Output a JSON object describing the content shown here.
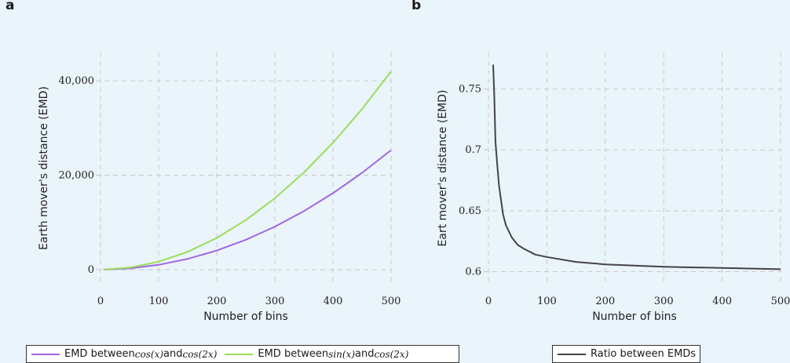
{
  "panels": {
    "a_letter": "a",
    "b_letter": "b"
  },
  "colors": {
    "purple": "#a066e0",
    "green": "#9bdd58",
    "dark": "#444444",
    "grid": "#c8c8c8"
  },
  "chart_data": [
    {
      "type": "line",
      "panel": "a",
      "xlabel": "Number of bins",
      "ylabel": "Earth mover's distance (EMD)",
      "xlim": [
        0,
        500
      ],
      "ylim": [
        -3000,
        46000
      ],
      "xticks": [
        0,
        100,
        200,
        300,
        400,
        500
      ],
      "xtick_labels": [
        "0",
        "100",
        "200",
        "300",
        "400",
        "500"
      ],
      "yticks": [
        0,
        20000,
        40000
      ],
      "ytick_labels": [
        "0",
        "20,000",
        "40,000"
      ],
      "grid": true,
      "legend_position": "bottom",
      "series": [
        {
          "legend_prefix": "EMD between ",
          "legend_m1": "cos(x)",
          "legend_mid": " and ",
          "legend_m2": "cos(2x)",
          "color": "#a066e0",
          "x": [
            5,
            50,
            100,
            150,
            200,
            250,
            300,
            350,
            400,
            450,
            500
          ],
          "values": [
            3,
            253,
            1013,
            2278,
            4050,
            6328,
            9113,
            12403,
            16200,
            20503,
            25313
          ]
        },
        {
          "legend_prefix": "EMD between ",
          "legend_m1": "sin(x)",
          "legend_mid": " and ",
          "legend_m2": "cos(2x)",
          "color": "#9bdd58",
          "x": [
            5,
            50,
            100,
            150,
            200,
            250,
            300,
            350,
            400,
            450,
            500
          ],
          "values": [
            4,
            420,
            1680,
            3780,
            6720,
            10500,
            15120,
            20580,
            26880,
            34020,
            42000
          ]
        }
      ]
    },
    {
      "type": "line",
      "panel": "b",
      "xlabel": "Number of bins",
      "ylabel": "Eart mover's distance (EMD)",
      "xlim": [
        0,
        500
      ],
      "ylim": [
        0.59,
        0.78
      ],
      "xticks": [
        0,
        100,
        200,
        300,
        400,
        500
      ],
      "xtick_labels": [
        "0",
        "100",
        "200",
        "300",
        "400",
        "500"
      ],
      "yticks": [
        0.6,
        0.65,
        0.7,
        0.75
      ],
      "ytick_labels": [
        "0.6",
        "0.65",
        "0.7",
        "0.75"
      ],
      "grid": true,
      "legend_position": "bottom",
      "series": [
        {
          "name": "Ratio between EMDs",
          "color": "#444444",
          "x": [
            8,
            10,
            12,
            15,
            18,
            20,
            25,
            30,
            40,
            50,
            60,
            80,
            100,
            150,
            200,
            300,
            400,
            500
          ],
          "values": [
            0.77,
            0.745,
            0.707,
            0.688,
            0.671,
            0.664,
            0.647,
            0.638,
            0.628,
            0.622,
            0.619,
            0.614,
            0.612,
            0.608,
            0.606,
            0.604,
            0.603,
            0.602
          ]
        }
      ]
    }
  ]
}
